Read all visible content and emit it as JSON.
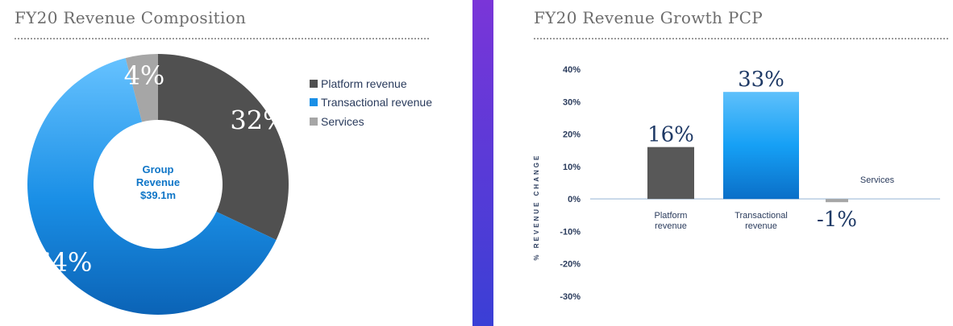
{
  "left": {
    "title": "FY20 Revenue Composition",
    "center_label": [
      "Group",
      "Revenue",
      "$39.1m"
    ]
  },
  "right": {
    "title": "FY20 Revenue Growth PCP"
  },
  "colors": {
    "platform": "#505050",
    "transactional": "#1a8fe6",
    "services": "#a6a6a6",
    "divider_top": "#7a35d8",
    "divider_bottom": "#3a3fd6"
  },
  "chart_data": [
    {
      "type": "pie",
      "title": "FY20 Revenue Composition",
      "donut": true,
      "center_label": "Group Revenue $39.1m",
      "legend_position": "right",
      "categories": [
        "Platform revenue",
        "Transactional revenue",
        "Services"
      ],
      "values": [
        32,
        64,
        4
      ],
      "data_labels": [
        "32%",
        "64%",
        "4%"
      ]
    },
    {
      "type": "bar",
      "title": "FY20 Revenue Growth PCP",
      "ylabel": "% REVENUE CHANGE",
      "ylim": [
        -30,
        40
      ],
      "yticks": [
        "40%",
        "30%",
        "20%",
        "10%",
        "0%",
        "-10%",
        "-20%",
        "-30%"
      ],
      "ytick_values": [
        40,
        30,
        20,
        10,
        0,
        -10,
        -20,
        -30
      ],
      "grid": false,
      "categories": [
        "Platform revenue",
        "Transactional revenue",
        "Services"
      ],
      "category_lines": [
        [
          "Platform",
          "revenue"
        ],
        [
          "Transactional",
          "revenue"
        ],
        [
          "Services"
        ]
      ],
      "values": [
        16,
        33,
        -1
      ],
      "data_labels": [
        "16%",
        "33%",
        "-1%"
      ]
    }
  ]
}
